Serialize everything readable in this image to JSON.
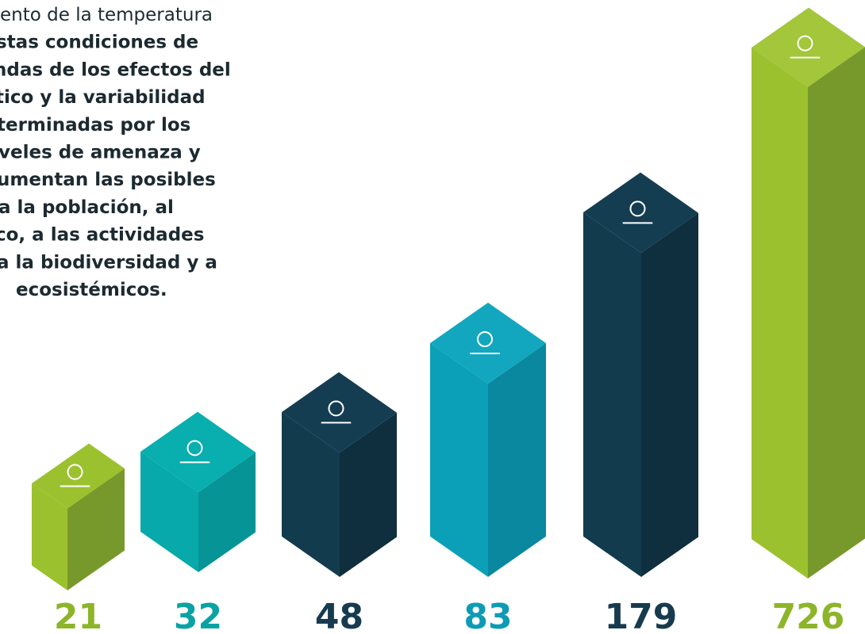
{
  "paragraph": [
    "ento de la temperatura",
    "stas condiciones de",
    "ndas de los efectos del",
    "tico y la variabilidad",
    "terminadas por los",
    "veles de amenaza y",
    "umentan las posibles",
    "a la población, al",
    "co, a las actividades",
    "a la biodiversidad y a",
    "ecosistémicos."
  ],
  "figures": [
    21,
    32,
    48,
    83,
    179,
    726
  ]
}
